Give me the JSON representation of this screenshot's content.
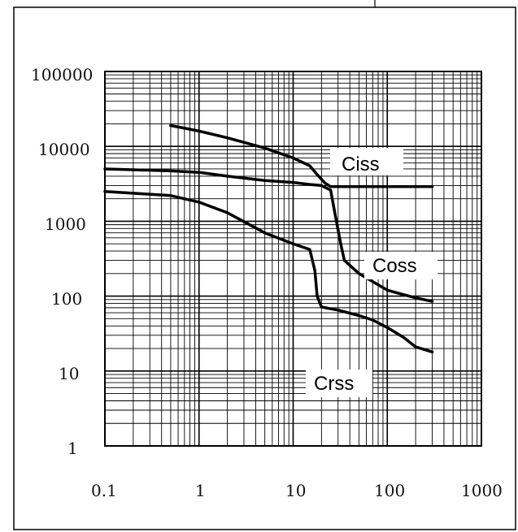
{
  "chart_data": {
    "type": "line",
    "title": "",
    "xlabel": "",
    "ylabel": "",
    "xscale": "log",
    "yscale": "log",
    "xlim": [
      0.1,
      1000
    ],
    "ylim": [
      1,
      100000
    ],
    "grid": true,
    "x_tick_labels": [
      "0.1",
      "1",
      "10",
      "100",
      "1000"
    ],
    "x_tick_values": [
      0.1,
      1,
      10,
      100,
      1000
    ],
    "y_tick_labels": [
      "100000",
      "10000",
      "1000",
      "100",
      "10",
      "1"
    ],
    "y_tick_values": [
      100000,
      10000,
      1000,
      100,
      10,
      1
    ],
    "series": [
      {
        "name": "Ciss",
        "x": [
          0.5,
          1,
          2,
          5,
          10,
          15,
          18,
          22,
          25,
          30,
          50,
          100,
          300
        ],
        "y": [
          19000,
          16000,
          13000,
          9500,
          7000,
          5500,
          4200,
          3200,
          2900,
          2900,
          2900,
          2900,
          2900
        ]
      },
      {
        "name": "Coss",
        "x": [
          0.1,
          0.5,
          1,
          2,
          5,
          10,
          15,
          20,
          25,
          28,
          32,
          35,
          50,
          100,
          200,
          300
        ],
        "y": [
          5000,
          4700,
          4500,
          4000,
          3500,
          3300,
          3100,
          3000,
          2600,
          1200,
          500,
          300,
          200,
          120,
          95,
          85
        ]
      },
      {
        "name": "Crss",
        "x": [
          0.1,
          0.5,
          1,
          2,
          5,
          10,
          15,
          17,
          18,
          20,
          22,
          30,
          50,
          70,
          100,
          150,
          200,
          300
        ],
        "y": [
          2500,
          2200,
          1800,
          1300,
          700,
          500,
          420,
          220,
          100,
          72,
          70,
          65,
          55,
          48,
          38,
          28,
          21,
          18
        ]
      }
    ]
  }
}
